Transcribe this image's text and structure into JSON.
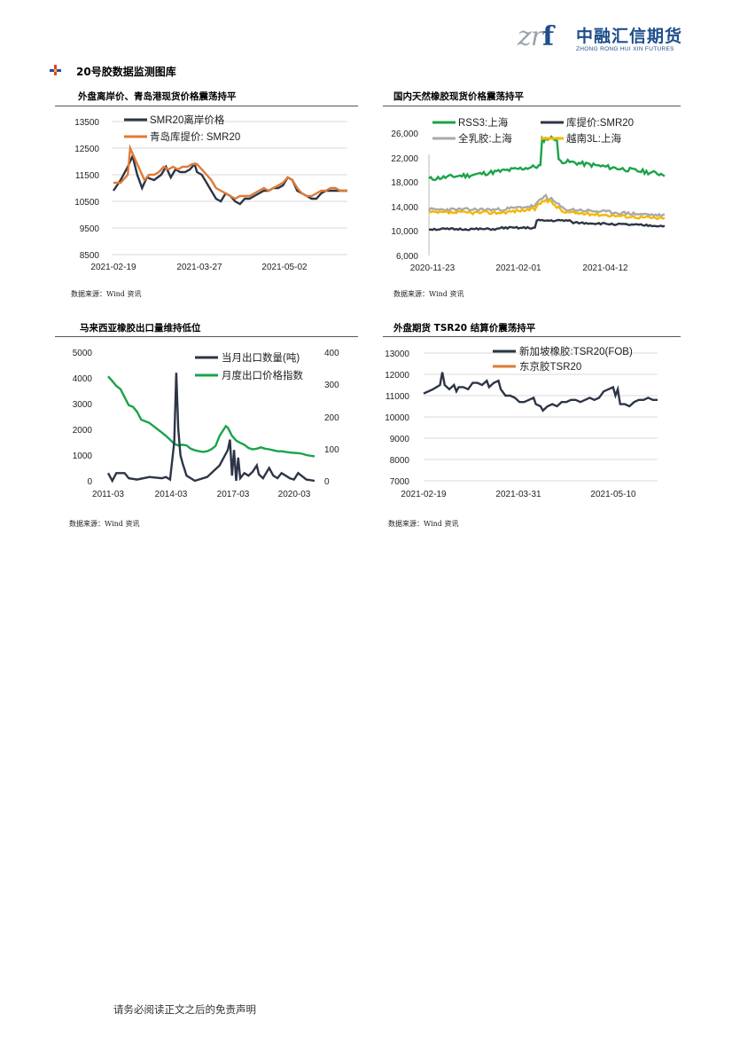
{
  "header": {
    "logo_mark_zr": "zr",
    "logo_mark_f": "f",
    "logo_cn": "中融汇信期货",
    "logo_en": "ZHONG RONG HUI XIN FUTURES"
  },
  "section_title": "20号胶数据监测图库",
  "footer_text": "请务必阅读正文之后的免责声明",
  "charts": [
    {
      "title": "外盘离岸价、青岛港现货价格震荡持平",
      "source": "数据来源：Wind 资讯",
      "legend": [
        "SMR20离岸价格",
        "青岛库提价: SMR20"
      ],
      "y_ticks": [
        "13500",
        "12500",
        "11500",
        "10500",
        "9500",
        "8500"
      ],
      "x_ticks": [
        "2021-02-19",
        "2021-03-27",
        "2021-05-02"
      ]
    },
    {
      "title": "国内天然橡胶现货价格震荡持平",
      "source": "数据来源：Wind 资讯",
      "legend": [
        "RSS3:上海",
        "库提价:SMR20",
        "全乳胶:上海",
        "越南3L:上海"
      ],
      "y_ticks": [
        "26,000",
        "22,000",
        "18,000",
        "14,000",
        "10,000",
        "6,000"
      ],
      "x_ticks": [
        "2020-11-23",
        "2021-02-01",
        "2021-04-12"
      ]
    },
    {
      "title": "马来西亚橡胶出口量维持低位",
      "source": "数据来源：Wind 资讯",
      "legend": [
        "当月出口数量(吨)",
        "月度出口价格指数"
      ],
      "y_ticks": [
        "5000",
        "4000",
        "3000",
        "2000",
        "1000",
        "0"
      ],
      "y2_ticks": [
        "400",
        "300",
        "200",
        "100",
        "0"
      ],
      "x_ticks": [
        "2011-03",
        "2014-03",
        "2017-03",
        "2020-03"
      ]
    },
    {
      "title": "外盘期货 TSR20 结算价震荡持平",
      "source": "数据来源：Wind 资讯",
      "legend": [
        "新加坡橡胶:TSR20(FOB)",
        "东京胶TSR20"
      ],
      "y_ticks": [
        "13000",
        "12000",
        "11000",
        "10000",
        "9000",
        "8000",
        "7000"
      ],
      "x_ticks": [
        "2021-02-19",
        "2021-03-31",
        "2021-05-10"
      ]
    }
  ],
  "chart_data": [
    {
      "type": "line",
      "ylim": [
        8500,
        14000
      ],
      "x_range": [
        "2021-02-19",
        "2021-06-06"
      ],
      "series": [
        {
          "name": "SMR20离岸价格",
          "color": "#2d3547",
          "points": [
            [
              0,
              10900
            ],
            [
              3,
              11300
            ],
            [
              6,
              11800
            ],
            [
              8,
              12200
            ],
            [
              10,
              11500
            ],
            [
              12,
              11000
            ],
            [
              14,
              11400
            ],
            [
              17,
              11300
            ],
            [
              20,
              11500
            ],
            [
              22,
              11800
            ],
            [
              24,
              11400
            ],
            [
              26,
              11700
            ],
            [
              28,
              11600
            ],
            [
              30,
              11600
            ],
            [
              32,
              11700
            ],
            [
              34,
              11900
            ],
            [
              35,
              11600
            ],
            [
              37,
              11500
            ],
            [
              39,
              11200
            ],
            [
              41,
              10900
            ],
            [
              43,
              10600
            ],
            [
              45,
              10500
            ],
            [
              47,
              10800
            ],
            [
              49,
              10700
            ],
            [
              51,
              10500
            ],
            [
              53,
              10400
            ],
            [
              55,
              10600
            ],
            [
              57,
              10600
            ],
            [
              59,
              10700
            ],
            [
              61,
              10800
            ],
            [
              63,
              10900
            ],
            [
              65,
              10900
            ],
            [
              67,
              11000
            ],
            [
              69,
              11000
            ],
            [
              71,
              11100
            ],
            [
              73,
              11400
            ],
            [
              75,
              11300
            ],
            [
              77,
              10900
            ],
            [
              79,
              10800
            ],
            [
              81,
              10700
            ],
            [
              83,
              10600
            ],
            [
              85,
              10600
            ],
            [
              87,
              10800
            ],
            [
              89,
              10900
            ],
            [
              91,
              10900
            ],
            [
              93,
              10900
            ],
            [
              95,
              10900
            ],
            [
              98,
              10900
            ]
          ]
        },
        {
          "name": "青岛库提价: SMR20",
          "color": "#e07a35",
          "points": [
            [
              0,
              11200
            ],
            [
              3,
              11200
            ],
            [
              6,
              11500
            ],
            [
              7,
              12500
            ],
            [
              9,
              12100
            ],
            [
              11,
              11700
            ],
            [
              13,
              11300
            ],
            [
              15,
              11500
            ],
            [
              17,
              11500
            ],
            [
              19,
              11600
            ],
            [
              21,
              11800
            ],
            [
              23,
              11700
            ],
            [
              25,
              11800
            ],
            [
              27,
              11700
            ],
            [
              29,
              11800
            ],
            [
              31,
              11800
            ],
            [
              33,
              11900
            ],
            [
              35,
              11900
            ],
            [
              37,
              11700
            ],
            [
              39,
              11500
            ],
            [
              41,
              11300
            ],
            [
              43,
              11000
            ],
            [
              45,
              10900
            ],
            [
              47,
              10800
            ],
            [
              49,
              10700
            ],
            [
              51,
              10600
            ],
            [
              53,
              10700
            ],
            [
              55,
              10700
            ],
            [
              57,
              10700
            ],
            [
              59,
              10800
            ],
            [
              61,
              10900
            ],
            [
              63,
              11000
            ],
            [
              65,
              10900
            ],
            [
              67,
              11000
            ],
            [
              69,
              11100
            ],
            [
              71,
              11200
            ],
            [
              73,
              11400
            ],
            [
              75,
              11300
            ],
            [
              77,
              11000
            ],
            [
              79,
              10800
            ],
            [
              81,
              10700
            ],
            [
              83,
              10700
            ],
            [
              85,
              10800
            ],
            [
              87,
              10900
            ],
            [
              89,
              10900
            ],
            [
              91,
              11000
            ],
            [
              93,
              11000
            ],
            [
              95,
              10900
            ],
            [
              98,
              10900
            ]
          ]
        }
      ]
    },
    {
      "type": "line",
      "ylim": [
        6000,
        28000
      ],
      "x_range": [
        "2020-11-23",
        "2021-06-06"
      ],
      "series": [
        {
          "name": "RSS3:上海",
          "color": "#1aa34a"
        },
        {
          "name": "库提价:SMR20",
          "color": "#2d3547"
        },
        {
          "name": "全乳胶:上海",
          "color": "#a9a9a9"
        },
        {
          "name": "越南3L:上海",
          "color": "#f2b705"
        }
      ]
    },
    {
      "type": "line",
      "ylim": [
        0,
        5000
      ],
      "y2lim": [
        0,
        400
      ],
      "x_range": [
        "2011-01",
        "2021-06"
      ],
      "series": [
        {
          "name": "当月出口数量(吨)",
          "color": "#2d3547"
        },
        {
          "name": "月度出口价格指数",
          "color": "#1aa34a"
        }
      ]
    },
    {
      "type": "line",
      "ylim": [
        7000,
        13000
      ],
      "x_range": [
        "2021-02-19",
        "2021-06-06"
      ],
      "series": [
        {
          "name": "新加坡橡胶:TSR20(FOB)",
          "color": "#2d3547"
        },
        {
          "name": "东京胶TSR20",
          "color": "#e07a35"
        }
      ]
    }
  ]
}
